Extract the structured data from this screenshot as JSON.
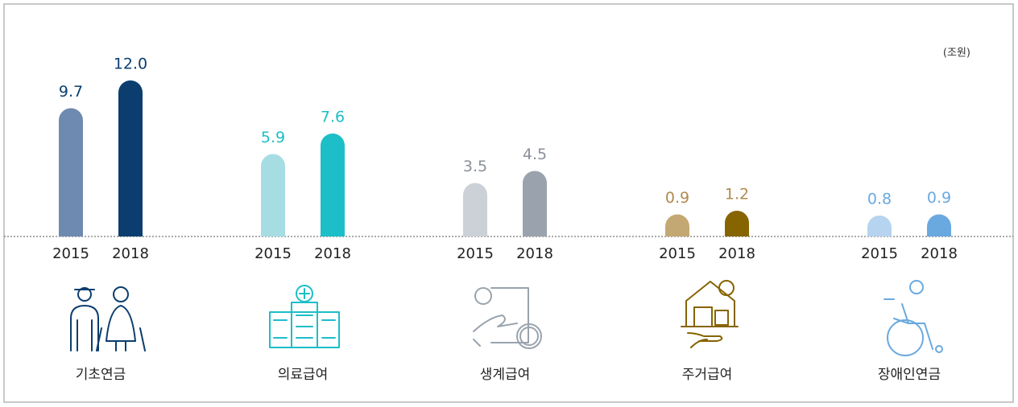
{
  "chart_data": {
    "type": "bar",
    "unit": "(조원)",
    "categories": [
      "기초연금",
      "의료급여",
      "생계급여",
      "주거급여",
      "장애인연금"
    ],
    "series": [
      {
        "name": "2015",
        "values": [
          9.7,
          5.9,
          3.5,
          0.9,
          0.8
        ],
        "colors": [
          "#6e8ab0",
          "#a6dde3",
          "#ccd1d7",
          "#c4a873",
          "#b6d3ef"
        ]
      },
      {
        "name": "2018",
        "values": [
          12,
          7.6,
          4.5,
          1.2,
          0.9
        ],
        "value_labels": [
          "12.0",
          "7.6",
          "4.5",
          "1.2",
          "0.9"
        ],
        "colors": [
          "#0b3e6e",
          "#1cbec8",
          "#9aa3ad",
          "#866400",
          "#6aa9df"
        ]
      }
    ],
    "label_colors": [
      "#0b3e6e",
      "#1cbec8",
      "#8a9099",
      "#b08a4e",
      "#6aa9df"
    ]
  }
}
